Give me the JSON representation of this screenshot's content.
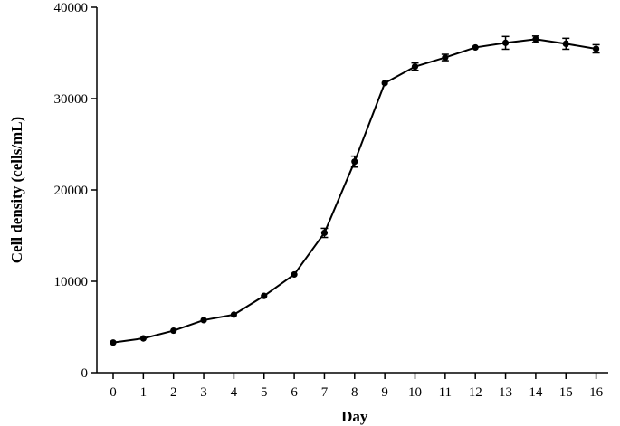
{
  "chart_data": {
    "type": "line",
    "xlabel": "Day",
    "ylabel": "Cell density (cells/mL)",
    "xlim": [
      0,
      16
    ],
    "ylim": [
      0,
      40000
    ],
    "x_ticks": [
      "0",
      "1",
      "2",
      "3",
      "4",
      "5",
      "6",
      "7",
      "8",
      "9",
      "10",
      "11",
      "12",
      "13",
      "14",
      "15",
      "16"
    ],
    "y_ticks": [
      "0",
      "10000",
      "20000",
      "30000",
      "40000"
    ],
    "grid": false,
    "series": [
      {
        "x": [
          0,
          1,
          2,
          3,
          4,
          5,
          6,
          7,
          8,
          9,
          10,
          11,
          12,
          13,
          14,
          15,
          16
        ],
        "y": [
          3300,
          3750,
          4600,
          5750,
          6350,
          8400,
          10750,
          15300,
          23100,
          31700,
          33500,
          34500,
          35600,
          36100,
          36500,
          36000,
          35450
        ],
        "error": [
          0,
          0,
          0,
          0,
          0,
          0,
          0,
          500,
          600,
          0,
          400,
          350,
          0,
          700,
          350,
          600,
          450
        ],
        "color": "#000000"
      }
    ]
  }
}
